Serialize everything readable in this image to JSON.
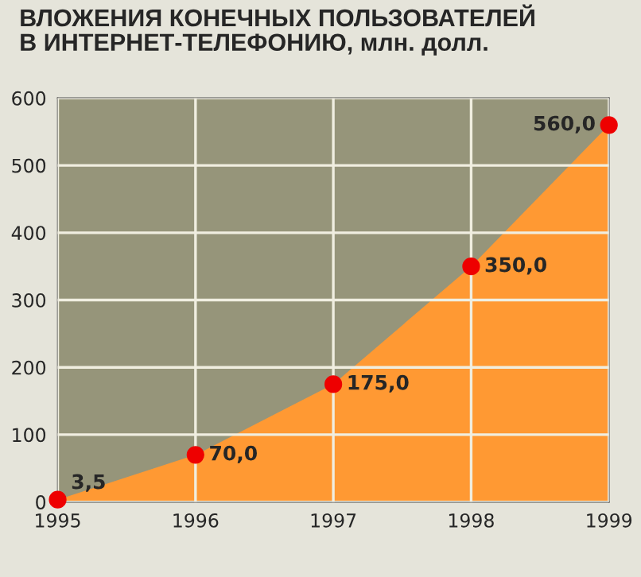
{
  "chart_data": {
    "type": "area",
    "title": "ВЛОЖЕНИЯ КОНЕЧНЫХ ПОЛЬЗОВАТЕЛЕЙ\nВ ИНТЕРНЕТ-ТЕЛЕФОНИЮ, млн. долл.",
    "x": [
      1995,
      1996,
      1997,
      1998,
      1999
    ],
    "series": [
      {
        "color": "#ff9933",
        "values": [
          3.5,
          70,
          175,
          350,
          560
        ],
        "value_labels": [
          "3,5",
          "70,0",
          "175,0",
          "350,0",
          "560,0"
        ]
      }
    ],
    "xlim": [
      1995,
      1999
    ],
    "xticks": [
      1995,
      1996,
      1997,
      1998,
      1999
    ],
    "ylim": [
      0,
      600
    ],
    "yticks": [
      0,
      100,
      200,
      300,
      400,
      500,
      600
    ],
    "grid": true,
    "marker": "circle"
  }
}
